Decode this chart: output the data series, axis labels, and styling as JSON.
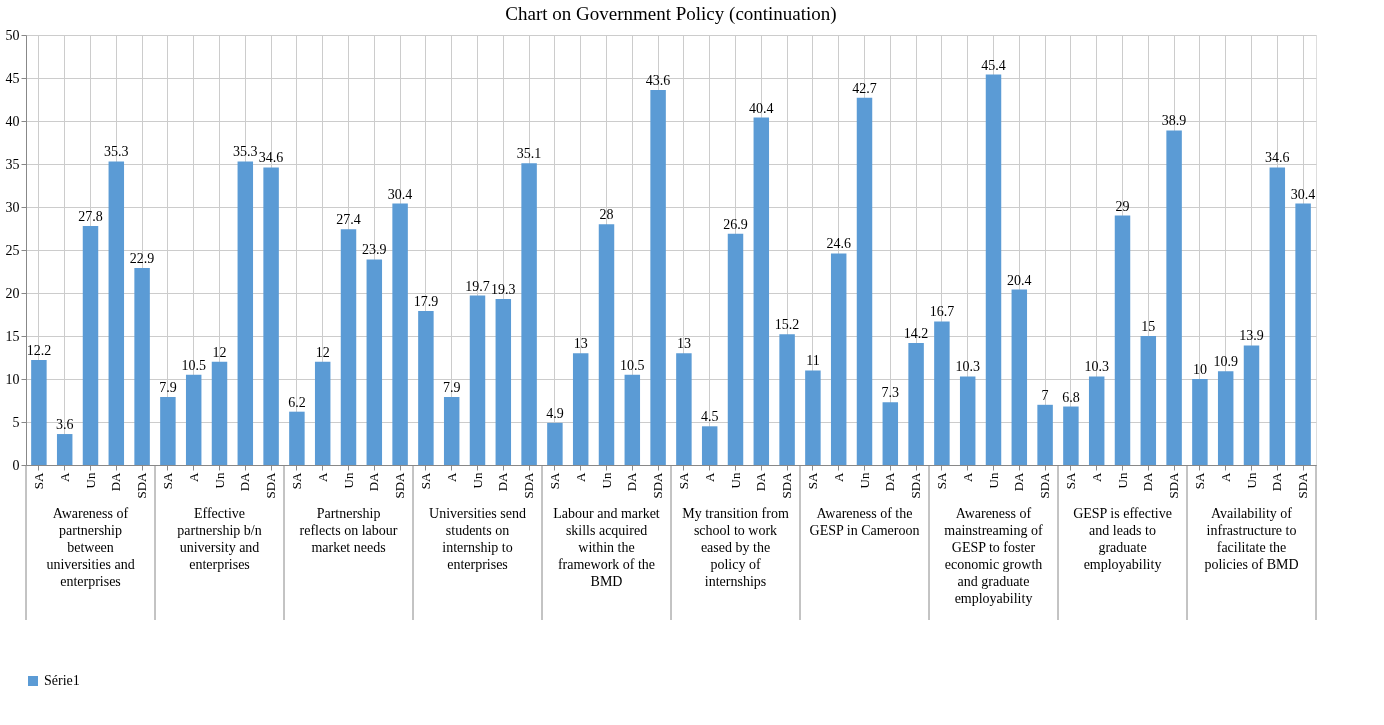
{
  "chart_data": {
    "type": "bar",
    "title": "Chart on Government Policy (continuation)",
    "categories": [
      "SA",
      "A",
      "Un",
      "DA",
      "SDA",
      "SA",
      "A",
      "Un",
      "DA",
      "SDA",
      "SA",
      "A",
      "Un",
      "DA",
      "SDA",
      "SA",
      "A",
      "Un",
      "DA",
      "SDA",
      "SA",
      "A",
      "Un",
      "DA",
      "SDA",
      "SA",
      "A",
      "Un",
      "DA",
      "SDA",
      "SA",
      "A",
      "Un",
      "DA",
      "SDA",
      "SA",
      "A",
      "Un",
      "DA",
      "SDA",
      "SA",
      "A",
      "Un",
      "DA",
      "SDA",
      "SA",
      "A",
      "Un",
      "DA",
      "SDA"
    ],
    "series": [
      {
        "name": "Série1",
        "color": "#5b9bd5",
        "values": [
          12.2,
          3.6,
          27.8,
          35.3,
          22.9,
          7.9,
          10.5,
          12,
          35.3,
          34.6,
          6.2,
          12,
          27.4,
          23.9,
          30.4,
          17.9,
          7.9,
          19.7,
          19.3,
          35.1,
          4.9,
          13,
          28,
          10.5,
          43.6,
          13,
          4.5,
          26.9,
          40.4,
          15.2,
          11,
          24.6,
          42.7,
          7.3,
          14.2,
          16.7,
          10.3,
          45.4,
          20.4,
          7,
          6.8,
          10.3,
          29,
          15,
          38.9,
          10,
          10.9,
          13.9,
          34.6,
          30.4
        ]
      }
    ],
    "annotations": [
      "Awareness of partnership between universities and enterprises",
      "Effective partnership b/n university and enterprises",
      "Partnership reflects on labour market needs",
      "Universities send students on internship to enterprises",
      "Labour and market skills acquired within the framework of the BMD",
      "My transition from school to work eased by the policy of internships",
      "Awareness of the GESP in Cameroon",
      "Awareness of mainstreaming of GESP to foster economic growth and graduate employability",
      "GESP is effective and leads to graduate employability",
      "Availability of infrastructure to facilitate the policies of BMD"
    ],
    "ylim": [
      0,
      50
    ],
    "yticks": [
      0,
      5,
      10,
      15,
      20,
      25,
      30,
      35,
      40,
      45,
      50
    ],
    "grid": true,
    "data_labels": true,
    "legend": "bottom"
  }
}
